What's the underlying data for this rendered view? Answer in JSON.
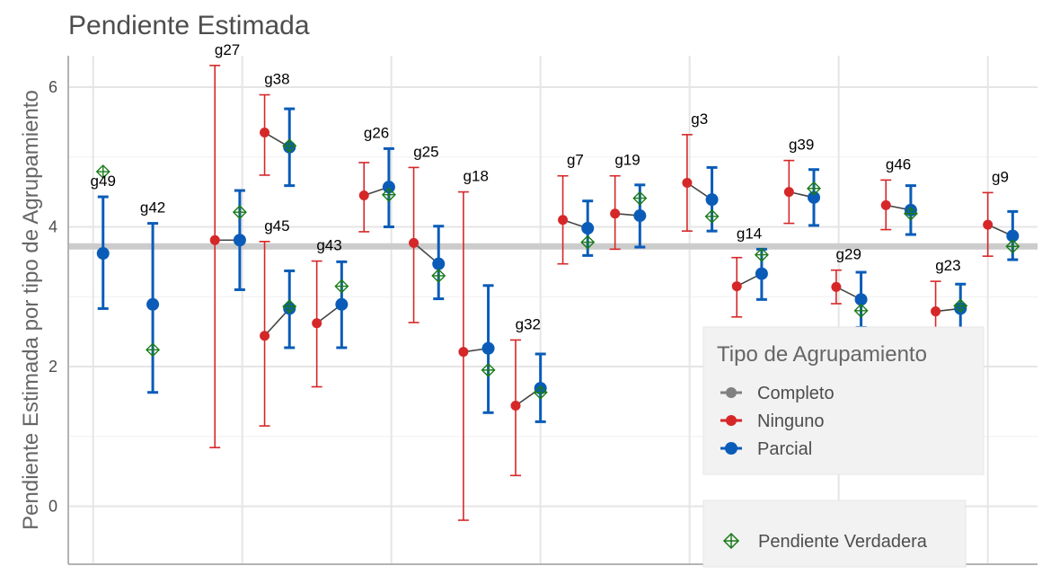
{
  "chart_data": {
    "type": "scatter",
    "title": "Pendiente Estimada",
    "ylabel": "Pendiente Estimada por tipo de Agrupamiento",
    "xlabel": "",
    "ylim": [
      -0.83,
      6.45
    ],
    "yticks": [
      0,
      2,
      4,
      6
    ],
    "grid": true,
    "reference_line": 3.72,
    "legend": {
      "title": "Tipo de Agrupamiento",
      "placement": "bottom-right",
      "entries": [
        {
          "name": "Completo",
          "color": "#808080"
        },
        {
          "name": "Ninguno",
          "color": "#d62728"
        },
        {
          "name": "Parcial",
          "color": "#0a5cb8"
        }
      ],
      "true_slope_label": "Pendiente Verdadera"
    },
    "colors": {
      "completo": "#808080",
      "ninguno": "#d62728",
      "parcial": "#0a5cb8",
      "verdadera": "#1a7a1a",
      "refline": "#cccccc"
    },
    "groups": [
      {
        "label": "g49",
        "x": 1.2,
        "parcial": {
          "est": 3.62,
          "lo": 2.83,
          "hi": 4.43
        },
        "true": 4.79
      },
      {
        "label": "g42",
        "x": 2.2,
        "parcial": {
          "est": 2.89,
          "lo": 1.63,
          "hi": 4.05
        },
        "true": 2.24
      },
      {
        "label": "g27",
        "x": 3.7,
        "ninguno": {
          "est": 3.81,
          "lo": 0.84,
          "hi": 6.31
        },
        "parcial": {
          "est": 3.81,
          "lo": 3.1,
          "hi": 4.52
        },
        "true": 4.21
      },
      {
        "label": "g38",
        "x": 4.7,
        "ninguno": {
          "est": 5.35,
          "lo": 4.74,
          "hi": 5.89
        },
        "parcial": {
          "est": 5.14,
          "lo": 4.59,
          "hi": 5.69
        },
        "true": 5.16
      },
      {
        "label": "g45",
        "x": 4.7,
        "ninguno": {
          "est": 2.44,
          "lo": 1.15,
          "hi": 3.79
        },
        "parcial": {
          "est": 2.83,
          "lo": 2.27,
          "hi": 3.37
        },
        "true": 2.86
      },
      {
        "label": "g43",
        "x": 5.75,
        "ninguno": {
          "est": 2.62,
          "lo": 1.71,
          "hi": 3.51
        },
        "parcial": {
          "est": 2.89,
          "lo": 2.27,
          "hi": 3.5
        },
        "true": 3.15
      },
      {
        "label": "g26",
        "x": 6.7,
        "ninguno": {
          "est": 4.45,
          "lo": 3.93,
          "hi": 4.92
        },
        "parcial": {
          "est": 4.57,
          "lo": 4.0,
          "hi": 5.12
        },
        "true": 4.46
      },
      {
        "label": "g25",
        "x": 7.7,
        "ninguno": {
          "est": 3.77,
          "lo": 2.63,
          "hi": 4.85
        },
        "parcial": {
          "est": 3.47,
          "lo": 2.97,
          "hi": 4.01
        },
        "true": 3.3
      },
      {
        "label": "g18",
        "x": 8.7,
        "ninguno": {
          "est": 2.21,
          "lo": -0.2,
          "hi": 4.5
        },
        "parcial": {
          "est": 2.26,
          "lo": 1.34,
          "hi": 3.16
        },
        "true": 1.95
      },
      {
        "label": "g32",
        "x": 9.75,
        "ninguno": {
          "est": 1.44,
          "lo": 0.44,
          "hi": 2.38
        },
        "parcial": {
          "est": 1.69,
          "lo": 1.21,
          "hi": 2.18
        },
        "true": 1.63
      },
      {
        "label": "g7",
        "x": 10.7,
        "ninguno": {
          "est": 4.1,
          "lo": 3.47,
          "hi": 4.73
        },
        "parcial": {
          "est": 3.98,
          "lo": 3.59,
          "hi": 4.37
        },
        "true": 3.78
      },
      {
        "label": "g19",
        "x": 11.75,
        "ninguno": {
          "est": 4.19,
          "lo": 3.68,
          "hi": 4.73
        },
        "parcial": {
          "est": 4.16,
          "lo": 3.71,
          "hi": 4.6
        },
        "true": 4.41
      },
      {
        "label": "g3",
        "x": 13.2,
        "ninguno": {
          "est": 4.63,
          "lo": 3.94,
          "hi": 5.32
        },
        "parcial": {
          "est": 4.39,
          "lo": 3.94,
          "hi": 4.85
        },
        "true": 4.15
      },
      {
        "label": "g14",
        "x": 14.2,
        "ninguno": {
          "est": 3.15,
          "lo": 2.71,
          "hi": 3.56
        },
        "parcial": {
          "est": 3.33,
          "lo": 2.96,
          "hi": 3.68
        },
        "true": 3.6
      },
      {
        "label": "g39",
        "x": 15.25,
        "ninguno": {
          "est": 4.5,
          "lo": 4.05,
          "hi": 4.95
        },
        "parcial": {
          "est": 4.42,
          "lo": 4.02,
          "hi": 4.82
        },
        "true": 4.55
      },
      {
        "label": "g29",
        "x": 16.2,
        "ninguno": {
          "est": 3.14,
          "lo": 2.9,
          "hi": 3.38
        },
        "parcial": {
          "est": 2.96,
          "lo": 2.56,
          "hi": 3.35
        },
        "true": 2.8
      },
      {
        "label": "g46",
        "x": 17.2,
        "ninguno": {
          "est": 4.31,
          "lo": 3.96,
          "hi": 4.67
        },
        "parcial": {
          "est": 4.24,
          "lo": 3.89,
          "hi": 4.59
        },
        "true": 4.19
      },
      {
        "label": "g23",
        "x": 18.2,
        "ninguno": {
          "est": 2.79,
          "lo": 2.42,
          "hi": 3.22
        },
        "parcial": {
          "est": 2.83,
          "lo": 2.49,
          "hi": 3.18
        },
        "true": 2.87
      },
      {
        "label": "g9",
        "x": 19.25,
        "ninguno": {
          "est": 4.03,
          "lo": 3.58,
          "hi": 4.49
        },
        "parcial": {
          "est": 3.87,
          "lo": 3.53,
          "hi": 4.22
        },
        "true": 3.72
      }
    ]
  }
}
